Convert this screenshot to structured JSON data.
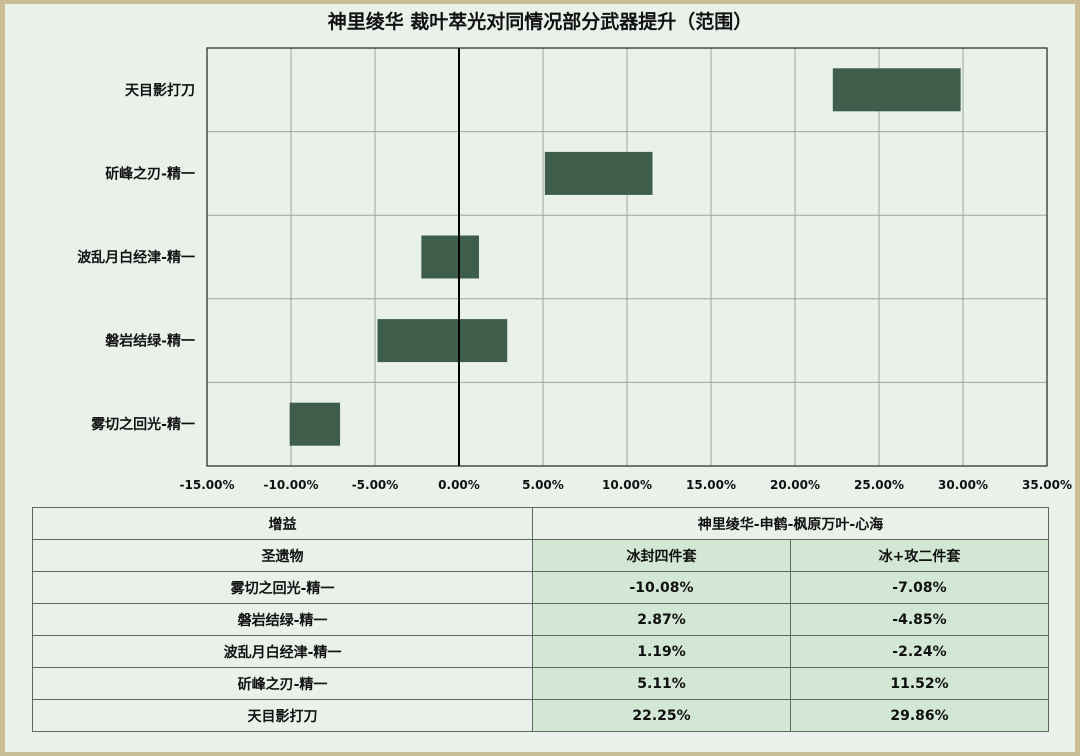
{
  "chart_data": {
    "type": "bar",
    "orientation": "horizontal",
    "subtype": "floating-range",
    "title": "神里绫华 裁叶萃光对同情况部分武器提升（范围）",
    "xlabel": "",
    "ylabel": "",
    "xlim": [
      -15,
      35
    ],
    "x_ticks": [
      "-15.00%",
      "-10.00%",
      "-5.00%",
      "0.00%",
      "5.00%",
      "10.00%",
      "15.00%",
      "20.00%",
      "25.00%",
      "30.00%",
      "35.00%"
    ],
    "grid": true,
    "legend": "none",
    "bar_color": "#3e5e4b",
    "categories": [
      "天目影打刀",
      "斫峰之刃-精一",
      "波乱月白经津-精一",
      "磐岩结绿-精一",
      "雾切之回光-精一"
    ],
    "series": [
      {
        "name": "冰封四件套",
        "values": [
          22.25,
          5.11,
          1.19,
          2.87,
          -10.08
        ]
      },
      {
        "name": "冰+攻二件套",
        "values": [
          29.86,
          11.52,
          -2.24,
          -4.85,
          -7.08
        ]
      }
    ]
  },
  "table": {
    "row1": {
      "label": "增益",
      "group": "神里绫华-申鹤-枫原万叶-心海"
    },
    "row2": {
      "label": "圣遗物",
      "col_a": "冰封四件套",
      "col_b": "冰+攻二件套"
    },
    "rows": [
      {
        "name": "雾切之回光-精一",
        "a": "-10.08%",
        "b": "-7.08%"
      },
      {
        "name": "磐岩结绿-精一",
        "a": "2.87%",
        "b": "-4.85%"
      },
      {
        "name": "波乱月白经津-精一",
        "a": "1.19%",
        "b": "-2.24%"
      },
      {
        "name": "斫峰之刃-精一",
        "a": "5.11%",
        "b": "11.52%"
      },
      {
        "name": "天目影打刀",
        "a": "22.25%",
        "b": "29.86%"
      }
    ]
  }
}
